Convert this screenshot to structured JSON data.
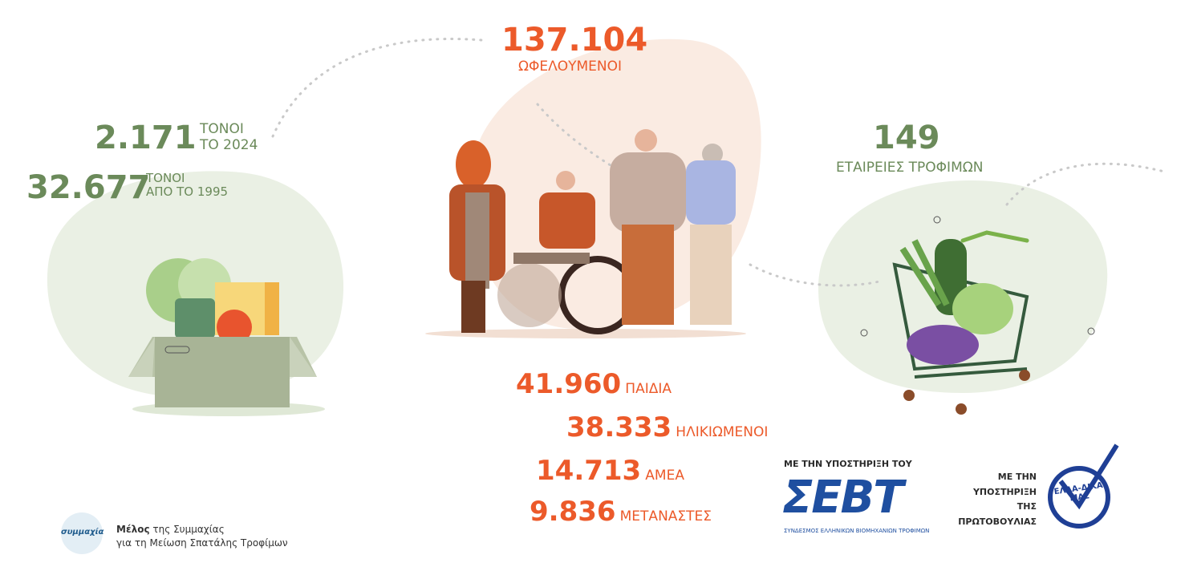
{
  "beneficiaries": {
    "number": "137.104",
    "label": "ΩΦΕΛΟΥΜΕΝΟΙ"
  },
  "tonnes_2024": {
    "number": "2.171",
    "label_1": "ΤΟΝΟΙ",
    "label_2": "ΤΟ 2024"
  },
  "tonnes_total": {
    "number": "32.677",
    "label_1": "ΤΟΝΟΙ",
    "label_2": "ΑΠΟ ΤΟ 1995"
  },
  "companies": {
    "number": "149",
    "label": "ΕΤΑΙΡΕΙΕΣ ΤΡΟΦΙΜΩΝ"
  },
  "breakdown": [
    {
      "number": "41.960",
      "label": "ΠΑΙΔΙΑ"
    },
    {
      "number": "38.333",
      "label": "ΗΛΙΚΙΩΜΕΝΟΙ"
    },
    {
      "number": "14.713",
      "label": "ΑΜΕΑ"
    },
    {
      "number": "9.836",
      "label": "ΜΕΤΑΝΑΣΤΕΣ"
    }
  ],
  "sevt": {
    "caption": "ΜΕ ΤΗΝ ΥΠΟΣΤΗΡΙΞΗ ΤΟΥ",
    "logo": "ΣΕΒΤ",
    "subtitle": "ΣΥΝΔΕΣΜΟΣ ΕΛΛΗΝΙΚΩΝ ΒΙΟΜΗΧΑΝΙΩΝ ΤΡΟΦΙΜΩΝ"
  },
  "initiative": {
    "caption": [
      "ΜΕ ΤΗΝ",
      "ΥΠΟΣΤΗΡΙΞΗ",
      "ΤΗΣ",
      "ΠΡΩΤΟΒΟΥΛΙΑΣ"
    ],
    "logo_1": "ΕΛΛΑ-ΔΙΚΑ",
    "logo_2": "ΜΑΣ"
  },
  "alliance": {
    "logo": "συμμαχία",
    "member": "Μέλος",
    "line_1": "της Συμμαχίας",
    "line_2": "για τη Μείωση Σπατάλης Τροφίμων"
  }
}
